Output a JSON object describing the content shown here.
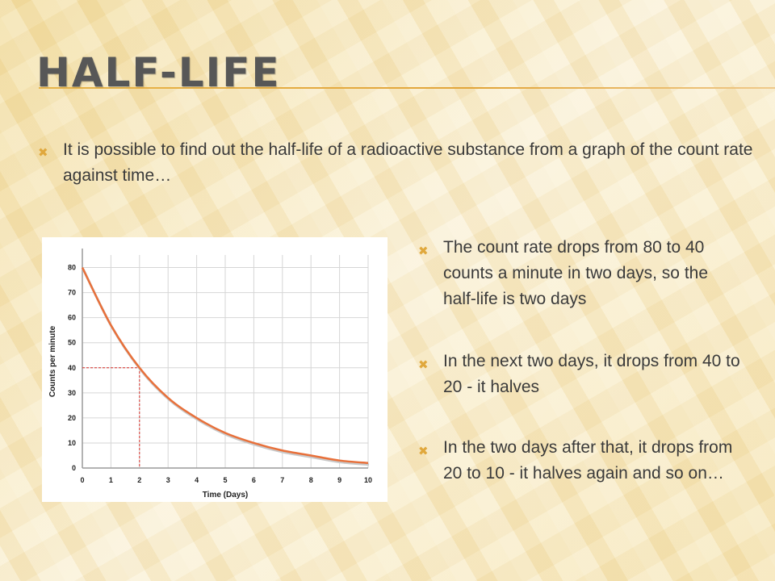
{
  "slide": {
    "title": "HALF-LIFE",
    "intro": "It is possible to find out the half-life of a radioactive substance from a graph of the count rate against time…",
    "points": [
      "The count rate drops from 80 to 40 counts a minute in two days, so the half-life is two days",
      "In the next two days, it drops from 40 to 20 - it halves",
      "In the two days after that, it drops from 20 to 10 - it halves again and so on…"
    ],
    "bullet_glyph": "✖"
  },
  "colors": {
    "title": "#575757",
    "accent": "#e0a83d",
    "curve": "#e8703a",
    "guide": "#d9302a"
  },
  "chart_data": {
    "type": "line",
    "xlabel": "Time (Days)",
    "ylabel": "Counts per minute",
    "x_ticks": [
      "0",
      "1",
      "2",
      "3",
      "4",
      "5",
      "6",
      "7",
      "8",
      "9",
      "10"
    ],
    "y_ticks": [
      "0",
      "10",
      "20",
      "30",
      "40",
      "50",
      "60",
      "70",
      "80"
    ],
    "xlim": [
      0,
      10
    ],
    "ylim": [
      0,
      85
    ],
    "grid": true,
    "series": [
      {
        "x": [
          0,
          1,
          2,
          3,
          4,
          5,
          6,
          7,
          8,
          9,
          10
        ],
        "y": [
          80,
          57,
          40,
          28,
          20,
          14,
          10,
          7,
          5,
          3,
          2
        ]
      }
    ],
    "annotation": {
      "x": 2,
      "y": 40
    }
  }
}
